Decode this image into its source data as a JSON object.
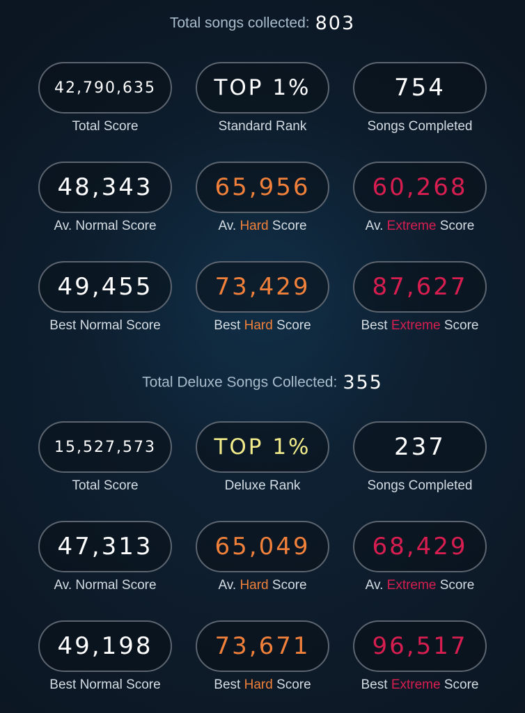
{
  "standard": {
    "header_label": "Total songs collected:",
    "header_value": "803",
    "total_score": {
      "value": "42,790,635",
      "label": "Total Score"
    },
    "rank": {
      "value": "TOP 1%",
      "label": "Standard Rank"
    },
    "songs_completed": {
      "value": "754",
      "label": "Songs Completed"
    },
    "av_normal": {
      "value": "48,343",
      "label": "Av. Normal Score"
    },
    "av_hard": {
      "value": "65,956",
      "prefix": "Av.",
      "difficulty": "Hard",
      "suffix": "Score"
    },
    "av_extreme": {
      "value": "60,268",
      "prefix": "Av.",
      "difficulty": "Extreme",
      "suffix": "Score"
    },
    "best_normal": {
      "value": "49,455",
      "label": "Best Normal Score"
    },
    "best_hard": {
      "value": "73,429",
      "prefix": "Best",
      "difficulty": "Hard",
      "suffix": "Score"
    },
    "best_extreme": {
      "value": "87,627",
      "prefix": "Best",
      "difficulty": "Extreme",
      "suffix": "Score"
    }
  },
  "deluxe": {
    "header_label": "Total Deluxe Songs Collected:",
    "header_value": "355",
    "total_score": {
      "value": "15,527,573",
      "label": "Total Score"
    },
    "rank": {
      "value": "TOP 1%",
      "label": "Deluxe Rank"
    },
    "songs_completed": {
      "value": "237",
      "label": "Songs Completed"
    },
    "av_normal": {
      "value": "47,313",
      "label": "Av. Normal Score"
    },
    "av_hard": {
      "value": "65,049",
      "prefix": "Av.",
      "difficulty": "Hard",
      "suffix": "Score"
    },
    "av_extreme": {
      "value": "68,429",
      "prefix": "Av.",
      "difficulty": "Extreme",
      "suffix": "Score"
    },
    "best_normal": {
      "value": "49,198",
      "label": "Best Normal Score"
    },
    "best_hard": {
      "value": "73,671",
      "prefix": "Best",
      "difficulty": "Hard",
      "suffix": "Score"
    },
    "best_extreme": {
      "value": "96,517",
      "prefix": "Best",
      "difficulty": "Extreme",
      "suffix": "Score"
    }
  },
  "colors": {
    "hard": "#f0803a",
    "extreme": "#d81e50",
    "deluxe_rank": "#f2ec8a",
    "pill_border": "#5d6670",
    "background": "#0c1622"
  }
}
